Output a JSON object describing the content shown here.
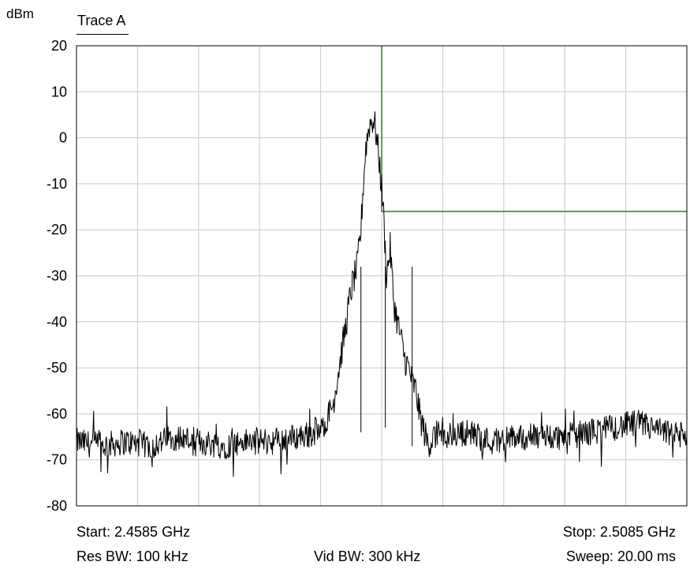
{
  "chart_data": {
    "type": "line",
    "title": "Trace A",
    "ylabel": "dBm",
    "xlabel": "",
    "ylim": [
      -80,
      20
    ],
    "yticks": [
      "20",
      "10",
      "0",
      "-10",
      "-20",
      "-30",
      "-40",
      "-50",
      "-60",
      "-70",
      "-80"
    ],
    "grid": true,
    "x_start_ghz": 2.4585,
    "x_stop_ghz": 2.5085,
    "x_divisions": 10,
    "series": [
      {
        "x": [
          2.4585,
          2.4605,
          2.4625,
          2.4645,
          2.4665,
          2.4685,
          2.4705,
          2.4725,
          2.4745,
          2.4765,
          2.4785,
          2.4795,
          2.48,
          2.4805,
          2.481,
          2.4815,
          2.4818,
          2.482,
          2.4822,
          2.4825,
          2.4828,
          2.483,
          2.4833,
          2.4836,
          2.4839,
          2.4842,
          2.4845,
          2.4848,
          2.4851,
          2.4854,
          2.4857,
          2.486,
          2.4863,
          2.4866,
          2.4869,
          2.4872,
          2.4875,
          2.4878,
          2.4881,
          2.4885,
          2.4905,
          2.4925,
          2.4945,
          2.4965,
          2.4985,
          2.5005,
          2.5025,
          2.5045,
          2.5065,
          2.5085
        ],
        "y": [
          -66,
          -67,
          -66,
          -67,
          -65,
          -66,
          -67,
          -66,
          -66,
          -65,
          -64,
          -58,
          -50,
          -42,
          -33,
          -28,
          -20,
          -10,
          -2,
          3,
          4,
          2,
          -5,
          -14,
          -30,
          -24,
          -36,
          -40,
          -44,
          -48,
          -50,
          -53,
          -55,
          -60,
          -63,
          -66,
          -66,
          -65,
          -64,
          -65,
          -64,
          -66,
          -65,
          -65,
          -65,
          -64,
          -63,
          -62,
          -64,
          -65
        ]
      }
    ],
    "limit_line": {
      "color": "#2e7d1f",
      "x_start_ghz": 2.4835,
      "level_dbm": -16
    },
    "trace_color": "#000000",
    "grid_color": "#c8c8c8"
  },
  "footer": {
    "start": "Start: 2.4585 GHz",
    "stop": "Stop: 2.5085 GHz",
    "res_bw": "Res BW: 100 kHz",
    "vid_bw": "Vid BW: 300 kHz",
    "sweep": "Sweep: 20.00 ms"
  }
}
